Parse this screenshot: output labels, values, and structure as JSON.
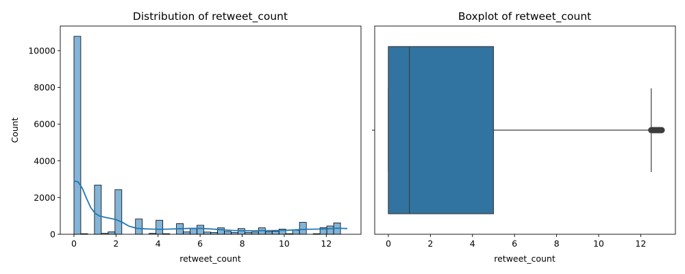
{
  "chart_data": [
    {
      "type": "bar",
      "subtype": "histogram",
      "title": "Distribution of retweet_count",
      "xlabel": "retweet_count",
      "ylabel": "Count",
      "xlim": [
        -0.65,
        13.65
      ],
      "ylim": [
        0,
        11340
      ],
      "xticks": [
        0,
        2,
        4,
        6,
        8,
        10,
        12
      ],
      "yticks": [
        0,
        2000,
        4000,
        6000,
        8000,
        10000
      ],
      "grid": false,
      "bar_color": "#1f77b4",
      "bar_alpha": 0.55,
      "bin_width": 0.325,
      "bins": [
        {
          "x": 0.0,
          "count": 10780
        },
        {
          "x": 0.325,
          "count": 30
        },
        {
          "x": 0.65,
          "count": 0
        },
        {
          "x": 0.975,
          "count": 2680
        },
        {
          "x": 1.3,
          "count": 50
        },
        {
          "x": 1.625,
          "count": 130
        },
        {
          "x": 1.95,
          "count": 2430
        },
        {
          "x": 2.275,
          "count": 0
        },
        {
          "x": 2.6,
          "count": 0
        },
        {
          "x": 2.925,
          "count": 830
        },
        {
          "x": 3.25,
          "count": 0
        },
        {
          "x": 3.575,
          "count": 50
        },
        {
          "x": 3.9,
          "count": 760
        },
        {
          "x": 4.225,
          "count": 30
        },
        {
          "x": 4.55,
          "count": 0
        },
        {
          "x": 4.875,
          "count": 580
        },
        {
          "x": 5.2,
          "count": 130
        },
        {
          "x": 5.525,
          "count": 310
        },
        {
          "x": 5.85,
          "count": 490
        },
        {
          "x": 6.175,
          "count": 120
        },
        {
          "x": 6.5,
          "count": 100
        },
        {
          "x": 6.825,
          "count": 350
        },
        {
          "x": 7.15,
          "count": 150
        },
        {
          "x": 7.475,
          "count": 100
        },
        {
          "x": 7.8,
          "count": 310
        },
        {
          "x": 8.125,
          "count": 100
        },
        {
          "x": 8.45,
          "count": 120
        },
        {
          "x": 8.775,
          "count": 350
        },
        {
          "x": 9.1,
          "count": 140
        },
        {
          "x": 9.425,
          "count": 160
        },
        {
          "x": 9.75,
          "count": 280
        },
        {
          "x": 10.075,
          "count": 30
        },
        {
          "x": 10.4,
          "count": 220
        },
        {
          "x": 10.725,
          "count": 650
        },
        {
          "x": 11.05,
          "count": 0
        },
        {
          "x": 11.375,
          "count": 30
        },
        {
          "x": 11.7,
          "count": 360
        },
        {
          "x": 12.025,
          "count": 450
        },
        {
          "x": 12.35,
          "count": 620
        }
      ],
      "kde": {
        "color": "#1f77b4",
        "x": [
          0.0,
          0.2,
          0.4,
          0.6,
          0.8,
          1.0,
          1.2,
          1.5,
          1.8,
          2.0,
          2.3,
          2.6,
          3.0,
          3.5,
          4.0,
          4.5,
          5.0,
          5.5,
          6.0,
          6.5,
          7.0,
          7.5,
          8.0,
          8.5,
          9.0,
          9.5,
          10.0,
          10.5,
          11.0,
          11.5,
          12.0,
          12.5,
          13.0
        ],
        "y": [
          2900,
          2850,
          2500,
          1950,
          1450,
          1150,
          1000,
          920,
          850,
          800,
          650,
          450,
          320,
          290,
          270,
          280,
          300,
          320,
          320,
          290,
          250,
          210,
          190,
          190,
          200,
          200,
          210,
          240,
          270,
          280,
          290,
          330,
          310
        ]
      }
    },
    {
      "type": "box",
      "title": "Boxplot of retweet_count",
      "xlabel": "retweet_count",
      "xlim": [
        -0.65,
        13.65
      ],
      "xticks": [
        0,
        2,
        4,
        6,
        8,
        10,
        12
      ],
      "grid": false,
      "box_color": "#3274a1",
      "whisker_color": "#3d3d3d",
      "stats": {
        "min": 0,
        "q1": 0,
        "median": 1,
        "q3": 5,
        "whisker_high": 12.5
      },
      "outliers_range": [
        12.5,
        13.0
      ]
    }
  ]
}
